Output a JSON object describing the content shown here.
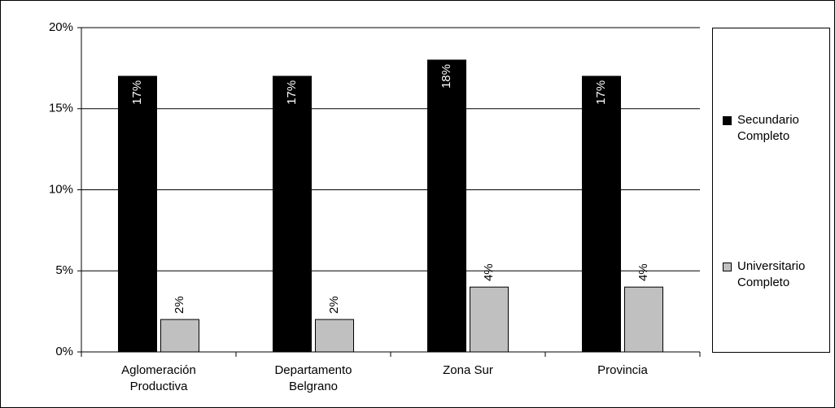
{
  "chart_data": {
    "type": "bar",
    "categories": [
      "Aglomeración Productiva",
      "Departamento Belgrano",
      "Zona Sur",
      "Provincia"
    ],
    "series": [
      {
        "name": "Secundario Completo",
        "color": "#000000",
        "values": [
          17,
          17,
          18,
          17
        ],
        "value_labels": [
          "17%",
          "17%",
          "18%",
          "17%"
        ]
      },
      {
        "name": "Universitario Completo",
        "color": "#c0c0c0",
        "values": [
          2,
          2,
          4,
          4
        ],
        "value_labels": [
          "2%",
          "2%",
          "4%",
          "4%"
        ]
      }
    ],
    "ylim": [
      0,
      20
    ],
    "yticks": [
      {
        "value": 0,
        "label": "0%"
      },
      {
        "value": 5,
        "label": "5%"
      },
      {
        "value": 10,
        "label": "10%"
      },
      {
        "value": 15,
        "label": "15%"
      },
      {
        "value": 20,
        "label": "20%"
      }
    ],
    "grid": true,
    "legend": "right"
  }
}
